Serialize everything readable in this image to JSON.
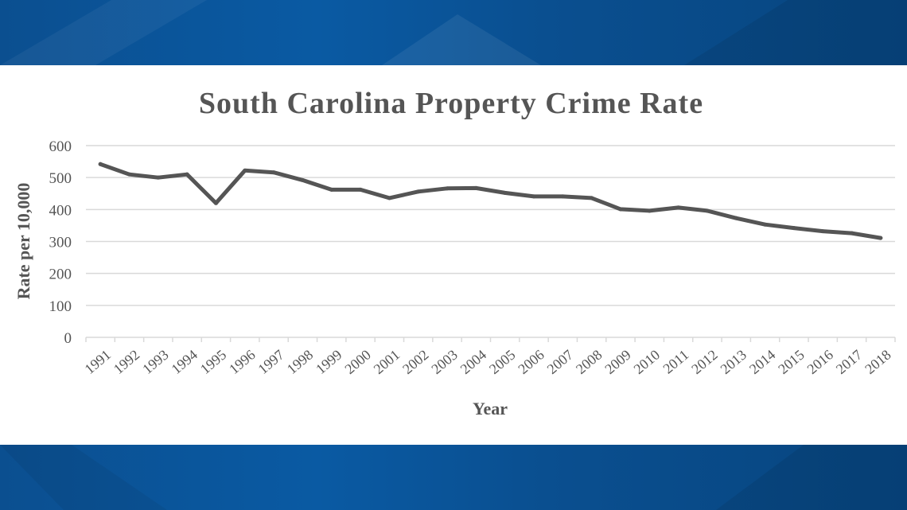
{
  "colors": {
    "band": "#0a5aa3",
    "line": "#555555",
    "grid": "#d9d9d9",
    "text": "#555555"
  },
  "chart_data": {
    "type": "line",
    "title": "South Carolina Property Crime Rate",
    "xlabel": "Year",
    "ylabel": "Rate per 10,000",
    "ylim": [
      0,
      600
    ],
    "yticks": [
      0,
      100,
      200,
      300,
      400,
      500,
      600
    ],
    "grid": true,
    "legend": "none",
    "categories": [
      "1991",
      "1992",
      "1993",
      "1994",
      "1995",
      "1996",
      "1997",
      "1998",
      "1999",
      "2000",
      "2001",
      "2002",
      "2003",
      "2004",
      "2005",
      "2006",
      "2007",
      "2008",
      "2009",
      "2010",
      "2011",
      "2012",
      "2013",
      "2014",
      "2015",
      "2016",
      "2017",
      "2018"
    ],
    "series": [
      {
        "values": [
          542,
          510,
          500,
          510,
          420,
          522,
          516,
          492,
          462,
          462,
          436,
          456,
          466,
          467,
          452,
          441,
          441,
          436,
          401,
          396,
          406,
          396,
          373,
          353,
          342,
          332,
          326,
          311
        ]
      }
    ]
  }
}
